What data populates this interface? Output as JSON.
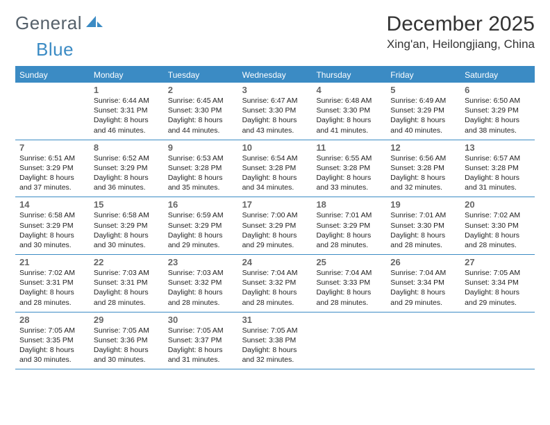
{
  "logo": {
    "part1": "General",
    "part2": "Blue"
  },
  "title": "December 2025",
  "location": "Xing'an, Heilongjiang, China",
  "colors": {
    "brand_blue": "#3b8bc4",
    "logo_gray": "#55606a",
    "text_dark": "#333333",
    "daynum_gray": "#666666",
    "white": "#ffffff"
  },
  "dayNames": [
    "Sunday",
    "Monday",
    "Tuesday",
    "Wednesday",
    "Thursday",
    "Friday",
    "Saturday"
  ],
  "weeks": [
    [
      {
        "day": "",
        "sunrise": "",
        "sunset": "",
        "daylight1": "",
        "daylight2": ""
      },
      {
        "day": "1",
        "sunrise": "Sunrise: 6:44 AM",
        "sunset": "Sunset: 3:31 PM",
        "daylight1": "Daylight: 8 hours",
        "daylight2": "and 46 minutes."
      },
      {
        "day": "2",
        "sunrise": "Sunrise: 6:45 AM",
        "sunset": "Sunset: 3:30 PM",
        "daylight1": "Daylight: 8 hours",
        "daylight2": "and 44 minutes."
      },
      {
        "day": "3",
        "sunrise": "Sunrise: 6:47 AM",
        "sunset": "Sunset: 3:30 PM",
        "daylight1": "Daylight: 8 hours",
        "daylight2": "and 43 minutes."
      },
      {
        "day": "4",
        "sunrise": "Sunrise: 6:48 AM",
        "sunset": "Sunset: 3:30 PM",
        "daylight1": "Daylight: 8 hours",
        "daylight2": "and 41 minutes."
      },
      {
        "day": "5",
        "sunrise": "Sunrise: 6:49 AM",
        "sunset": "Sunset: 3:29 PM",
        "daylight1": "Daylight: 8 hours",
        "daylight2": "and 40 minutes."
      },
      {
        "day": "6",
        "sunrise": "Sunrise: 6:50 AM",
        "sunset": "Sunset: 3:29 PM",
        "daylight1": "Daylight: 8 hours",
        "daylight2": "and 38 minutes."
      }
    ],
    [
      {
        "day": "7",
        "sunrise": "Sunrise: 6:51 AM",
        "sunset": "Sunset: 3:29 PM",
        "daylight1": "Daylight: 8 hours",
        "daylight2": "and 37 minutes."
      },
      {
        "day": "8",
        "sunrise": "Sunrise: 6:52 AM",
        "sunset": "Sunset: 3:29 PM",
        "daylight1": "Daylight: 8 hours",
        "daylight2": "and 36 minutes."
      },
      {
        "day": "9",
        "sunrise": "Sunrise: 6:53 AM",
        "sunset": "Sunset: 3:28 PM",
        "daylight1": "Daylight: 8 hours",
        "daylight2": "and 35 minutes."
      },
      {
        "day": "10",
        "sunrise": "Sunrise: 6:54 AM",
        "sunset": "Sunset: 3:28 PM",
        "daylight1": "Daylight: 8 hours",
        "daylight2": "and 34 minutes."
      },
      {
        "day": "11",
        "sunrise": "Sunrise: 6:55 AM",
        "sunset": "Sunset: 3:28 PM",
        "daylight1": "Daylight: 8 hours",
        "daylight2": "and 33 minutes."
      },
      {
        "day": "12",
        "sunrise": "Sunrise: 6:56 AM",
        "sunset": "Sunset: 3:28 PM",
        "daylight1": "Daylight: 8 hours",
        "daylight2": "and 32 minutes."
      },
      {
        "day": "13",
        "sunrise": "Sunrise: 6:57 AM",
        "sunset": "Sunset: 3:28 PM",
        "daylight1": "Daylight: 8 hours",
        "daylight2": "and 31 minutes."
      }
    ],
    [
      {
        "day": "14",
        "sunrise": "Sunrise: 6:58 AM",
        "sunset": "Sunset: 3:29 PM",
        "daylight1": "Daylight: 8 hours",
        "daylight2": "and 30 minutes."
      },
      {
        "day": "15",
        "sunrise": "Sunrise: 6:58 AM",
        "sunset": "Sunset: 3:29 PM",
        "daylight1": "Daylight: 8 hours",
        "daylight2": "and 30 minutes."
      },
      {
        "day": "16",
        "sunrise": "Sunrise: 6:59 AM",
        "sunset": "Sunset: 3:29 PM",
        "daylight1": "Daylight: 8 hours",
        "daylight2": "and 29 minutes."
      },
      {
        "day": "17",
        "sunrise": "Sunrise: 7:00 AM",
        "sunset": "Sunset: 3:29 PM",
        "daylight1": "Daylight: 8 hours",
        "daylight2": "and 29 minutes."
      },
      {
        "day": "18",
        "sunrise": "Sunrise: 7:01 AM",
        "sunset": "Sunset: 3:29 PM",
        "daylight1": "Daylight: 8 hours",
        "daylight2": "and 28 minutes."
      },
      {
        "day": "19",
        "sunrise": "Sunrise: 7:01 AM",
        "sunset": "Sunset: 3:30 PM",
        "daylight1": "Daylight: 8 hours",
        "daylight2": "and 28 minutes."
      },
      {
        "day": "20",
        "sunrise": "Sunrise: 7:02 AM",
        "sunset": "Sunset: 3:30 PM",
        "daylight1": "Daylight: 8 hours",
        "daylight2": "and 28 minutes."
      }
    ],
    [
      {
        "day": "21",
        "sunrise": "Sunrise: 7:02 AM",
        "sunset": "Sunset: 3:31 PM",
        "daylight1": "Daylight: 8 hours",
        "daylight2": "and 28 minutes."
      },
      {
        "day": "22",
        "sunrise": "Sunrise: 7:03 AM",
        "sunset": "Sunset: 3:31 PM",
        "daylight1": "Daylight: 8 hours",
        "daylight2": "and 28 minutes."
      },
      {
        "day": "23",
        "sunrise": "Sunrise: 7:03 AM",
        "sunset": "Sunset: 3:32 PM",
        "daylight1": "Daylight: 8 hours",
        "daylight2": "and 28 minutes."
      },
      {
        "day": "24",
        "sunrise": "Sunrise: 7:04 AM",
        "sunset": "Sunset: 3:32 PM",
        "daylight1": "Daylight: 8 hours",
        "daylight2": "and 28 minutes."
      },
      {
        "day": "25",
        "sunrise": "Sunrise: 7:04 AM",
        "sunset": "Sunset: 3:33 PM",
        "daylight1": "Daylight: 8 hours",
        "daylight2": "and 28 minutes."
      },
      {
        "day": "26",
        "sunrise": "Sunrise: 7:04 AM",
        "sunset": "Sunset: 3:34 PM",
        "daylight1": "Daylight: 8 hours",
        "daylight2": "and 29 minutes."
      },
      {
        "day": "27",
        "sunrise": "Sunrise: 7:05 AM",
        "sunset": "Sunset: 3:34 PM",
        "daylight1": "Daylight: 8 hours",
        "daylight2": "and 29 minutes."
      }
    ],
    [
      {
        "day": "28",
        "sunrise": "Sunrise: 7:05 AM",
        "sunset": "Sunset: 3:35 PM",
        "daylight1": "Daylight: 8 hours",
        "daylight2": "and 30 minutes."
      },
      {
        "day": "29",
        "sunrise": "Sunrise: 7:05 AM",
        "sunset": "Sunset: 3:36 PM",
        "daylight1": "Daylight: 8 hours",
        "daylight2": "and 30 minutes."
      },
      {
        "day": "30",
        "sunrise": "Sunrise: 7:05 AM",
        "sunset": "Sunset: 3:37 PM",
        "daylight1": "Daylight: 8 hours",
        "daylight2": "and 31 minutes."
      },
      {
        "day": "31",
        "sunrise": "Sunrise: 7:05 AM",
        "sunset": "Sunset: 3:38 PM",
        "daylight1": "Daylight: 8 hours",
        "daylight2": "and 32 minutes."
      },
      {
        "day": "",
        "sunrise": "",
        "sunset": "",
        "daylight1": "",
        "daylight2": ""
      },
      {
        "day": "",
        "sunrise": "",
        "sunset": "",
        "daylight1": "",
        "daylight2": ""
      },
      {
        "day": "",
        "sunrise": "",
        "sunset": "",
        "daylight1": "",
        "daylight2": ""
      }
    ]
  ]
}
